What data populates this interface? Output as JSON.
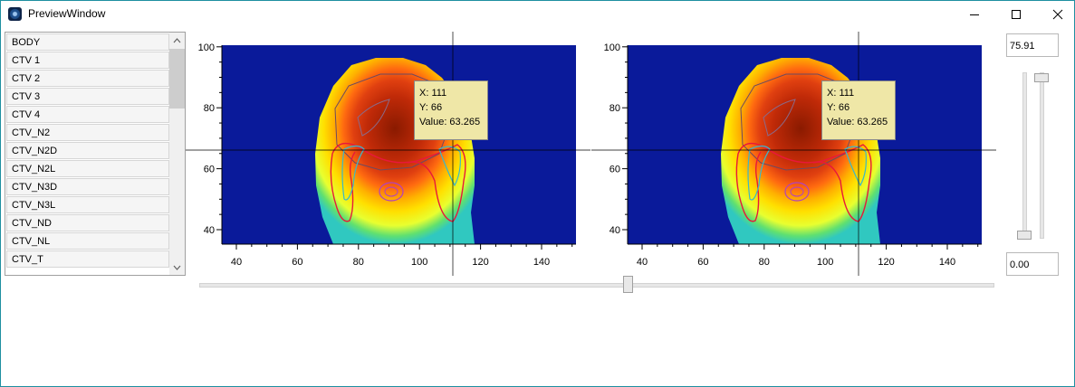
{
  "window": {
    "title": "PreviewWindow",
    "icon": "app-icon"
  },
  "window_controls": {
    "minimize_icon": "minimize-icon",
    "maximize_icon": "maximize-icon",
    "close_icon": "close-icon"
  },
  "structure_list": {
    "items": [
      "BODY",
      "CTV 1",
      "CTV 2",
      "CTV 3",
      "CTV 4",
      "CTV_N2",
      "CTV_N2D",
      "CTV_N2L",
      "CTV_N3D",
      "CTV_N3L",
      "CTV_ND",
      "CTV_NL",
      "CTV_T"
    ]
  },
  "plots": [
    {
      "xticks": [
        "40",
        "60",
        "80",
        "100",
        "120",
        "140"
      ],
      "yticks": [
        "40",
        "60",
        "80",
        "100"
      ],
      "tooltip": {
        "x": "X: 111",
        "y": "Y: 66",
        "value": "Value: 63.265"
      }
    },
    {
      "xticks": [
        "40",
        "60",
        "80",
        "100",
        "120",
        "140"
      ],
      "yticks": [
        "40",
        "60",
        "80",
        "100"
      ],
      "tooltip": {
        "x": "X: 111",
        "y": "Y: 66",
        "value": "Value: 63.265"
      }
    }
  ],
  "colors": {
    "background_fill": "#0a1a9a",
    "contour_red": "#e8183a",
    "contour_cyan": "#3ab8c8",
    "contour_magenta": "#b040c0"
  },
  "level_controls": {
    "max_value": "75.91",
    "min_value": "0.00",
    "max_level": 0.97,
    "min_level": 0.0
  },
  "slice_slider": {
    "position": 0.54
  }
}
